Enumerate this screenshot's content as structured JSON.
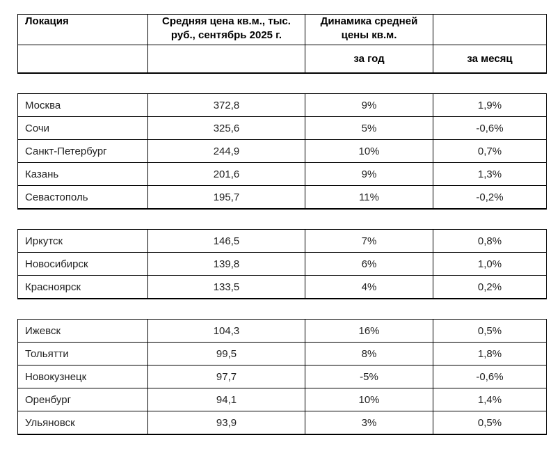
{
  "table": {
    "border_color": "#000000",
    "text_color": "#222222",
    "header_text_color": "#000000",
    "background": "#ffffff",
    "header": {
      "col1": "Локация",
      "col2": "Средняя цена кв.м., тыс. руб., сентябрь 2025 г.",
      "col3": "Динамика средней цены кв.м.",
      "col4": "",
      "sub_col1": "",
      "sub_col2": "",
      "sub_col3": "за год",
      "sub_col4": "за месяц"
    },
    "groups": [
      {
        "rows": [
          {
            "location": "Москва",
            "price": "372,8",
            "yoy": "9%",
            "mom": "1,9%"
          },
          {
            "location": "Сочи",
            "price": "325,6",
            "yoy": "5%",
            "mom": "-0,6%"
          },
          {
            "location": "Санкт-Петербург",
            "price": "244,9",
            "yoy": "10%",
            "mom": "0,7%"
          },
          {
            "location": "Казань",
            "price": "201,6",
            "yoy": "9%",
            "mom": "1,3%"
          },
          {
            "location": "Севастополь",
            "price": "195,7",
            "yoy": "11%",
            "mom": "-0,2%"
          }
        ]
      },
      {
        "rows": [
          {
            "location": "Иркутск",
            "price": "146,5",
            "yoy": "7%",
            "mom": "0,8%"
          },
          {
            "location": "Новосибирск",
            "price": "139,8",
            "yoy": "6%",
            "mom": "1,0%"
          },
          {
            "location": "Красноярск",
            "price": "133,5",
            "yoy": "4%",
            "mom": "0,2%"
          }
        ]
      },
      {
        "rows": [
          {
            "location": "Ижевск",
            "price": "104,3",
            "yoy": "16%",
            "mom": "0,5%"
          },
          {
            "location": "Тольятти",
            "price": "99,5",
            "yoy": "8%",
            "mom": "1,8%"
          },
          {
            "location": "Новокузнецк",
            "price": "97,7",
            "yoy": "-5%",
            "mom": "-0,6%"
          },
          {
            "location": "Оренбург",
            "price": "94,1",
            "yoy": "10%",
            "mom": "1,4%"
          },
          {
            "location": "Ульяновск",
            "price": "93,9",
            "yoy": "3%",
            "mom": "0,5%"
          }
        ]
      }
    ]
  }
}
